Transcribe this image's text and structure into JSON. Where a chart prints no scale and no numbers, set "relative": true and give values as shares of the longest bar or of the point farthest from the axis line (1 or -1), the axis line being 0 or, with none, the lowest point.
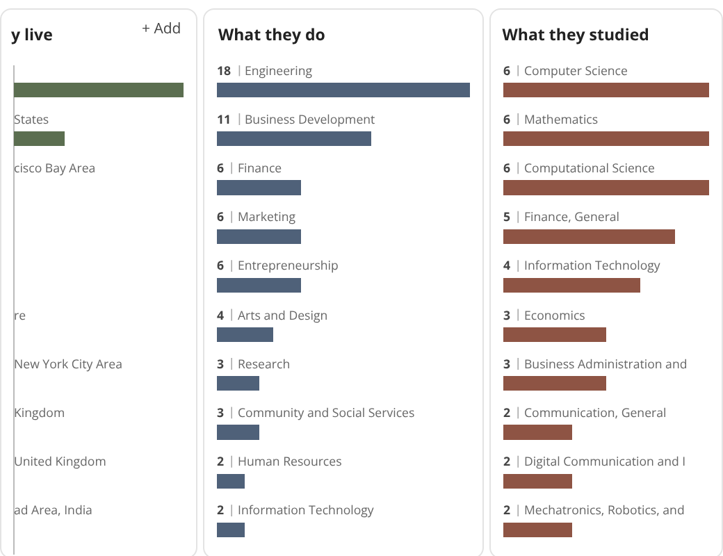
{
  "chart_data": [
    {
      "type": "bar",
      "orientation": "horizontal",
      "title": "y live",
      "annotations": [
        "+ Add"
      ],
      "relative": true,
      "tick_labels": false,
      "grid": false,
      "legend": false,
      "categories": [
        null,
        "States",
        "cisco Bay Area",
        null,
        null,
        "re",
        "New York City Area",
        "Kingdom",
        "United Kingdom",
        "ad Area, India"
      ],
      "values": [
        1,
        0.3,
        null,
        null,
        null,
        null,
        null,
        null,
        null,
        null
      ],
      "color": "#5b6e50"
    },
    {
      "type": "bar",
      "orientation": "horizontal",
      "title": "What they do",
      "tick_labels": false,
      "grid": false,
      "legend": false,
      "data_labels": true,
      "xlim": [
        0,
        18
      ],
      "categories": [
        "Engineering",
        "Business Development",
        "Finance",
        "Marketing",
        "Entrepreneurship",
        "Arts and Design",
        "Research",
        "Community and Social Services",
        "Human Resources",
        "Information Technology"
      ],
      "values": [
        18,
        11,
        6,
        6,
        6,
        4,
        3,
        3,
        2,
        2
      ],
      "color": "#4f6179"
    },
    {
      "type": "bar",
      "orientation": "horizontal",
      "title": "What they studied",
      "tick_labels": false,
      "grid": false,
      "legend": false,
      "data_labels": true,
      "xlim": [
        0,
        6
      ],
      "categories": [
        "Computer Science",
        "Mathematics",
        "Computational Science",
        "Finance, General",
        "Information Technology",
        "Economics",
        "Business Administration and",
        "Communication, General",
        "Digital Communication and I",
        "Mechatronics, Robotics, and"
      ],
      "values": [
        6,
        6,
        6,
        5,
        4,
        3,
        3,
        2,
        2,
        2
      ],
      "color": "#8e5444"
    }
  ]
}
